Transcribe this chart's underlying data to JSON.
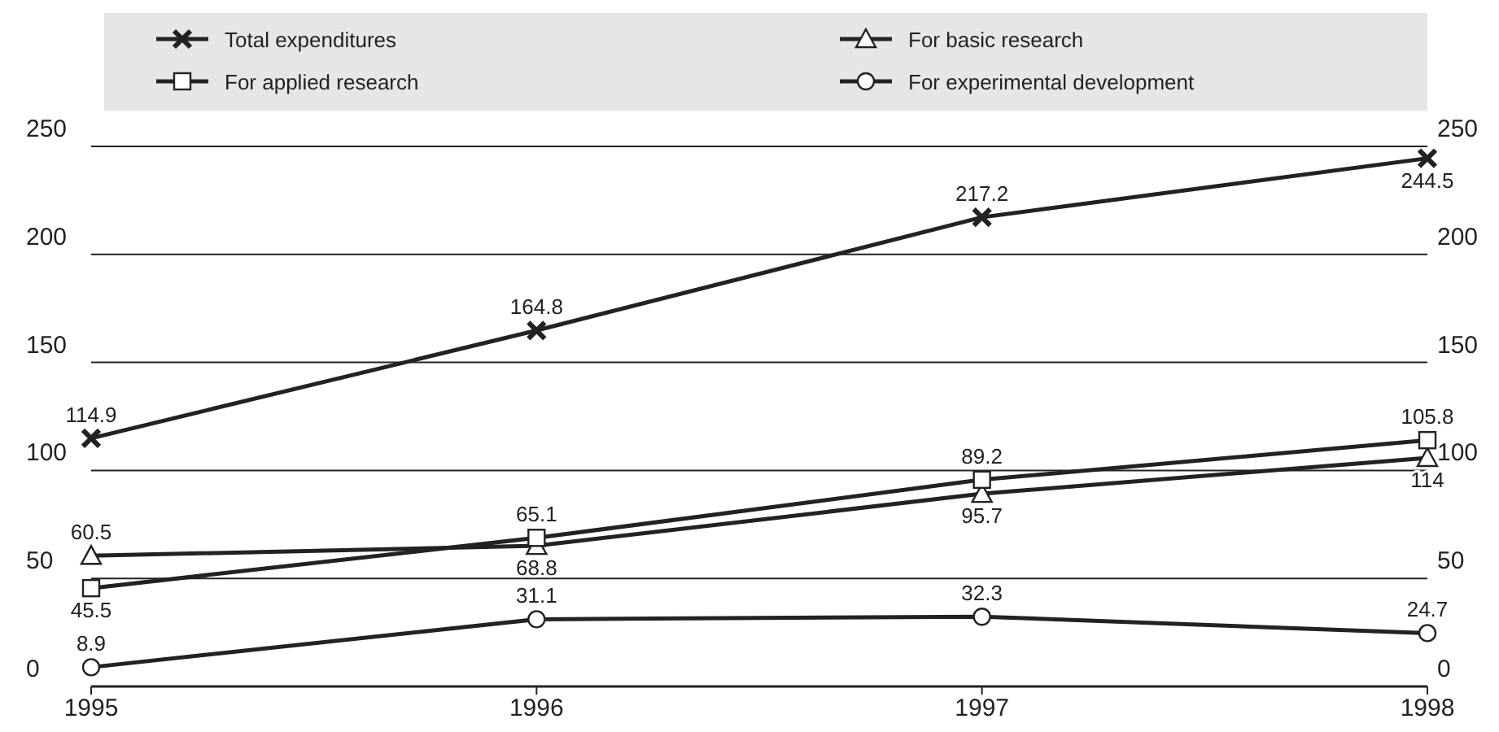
{
  "chart_data": {
    "type": "line",
    "x": [
      1995,
      1996,
      1997,
      1998
    ],
    "xlim": [
      1995,
      1998
    ],
    "xticks": [
      1995,
      1996,
      1997,
      1998
    ],
    "ylim": [
      0,
      250
    ],
    "yticks": [
      0,
      50,
      100,
      150,
      200,
      250
    ],
    "y2lim": [
      0,
      250
    ],
    "y2ticks": [
      0,
      50,
      100,
      150,
      200,
      250
    ],
    "grid": "y",
    "legend": "top",
    "data_labels": true,
    "line_style": "solid",
    "series": [
      {
        "name": "Total expenditures",
        "color": "#222222",
        "marker": "cross",
        "values": [
          114.9,
          164.8,
          217.2,
          244.5
        ]
      },
      {
        "name": "For basic research",
        "color": "#222222",
        "marker": "triangle",
        "values": [
          60.5,
          65.1,
          89.2,
          105.8
        ]
      },
      {
        "name": "For applied research",
        "color": "#222222",
        "marker": "square",
        "values": [
          45.5,
          68.8,
          95.7,
          114
        ]
      },
      {
        "name": "For experimental development",
        "color": "#222222",
        "marker": "circle",
        "values": [
          8.9,
          31.1,
          32.3,
          24.7
        ]
      }
    ]
  }
}
